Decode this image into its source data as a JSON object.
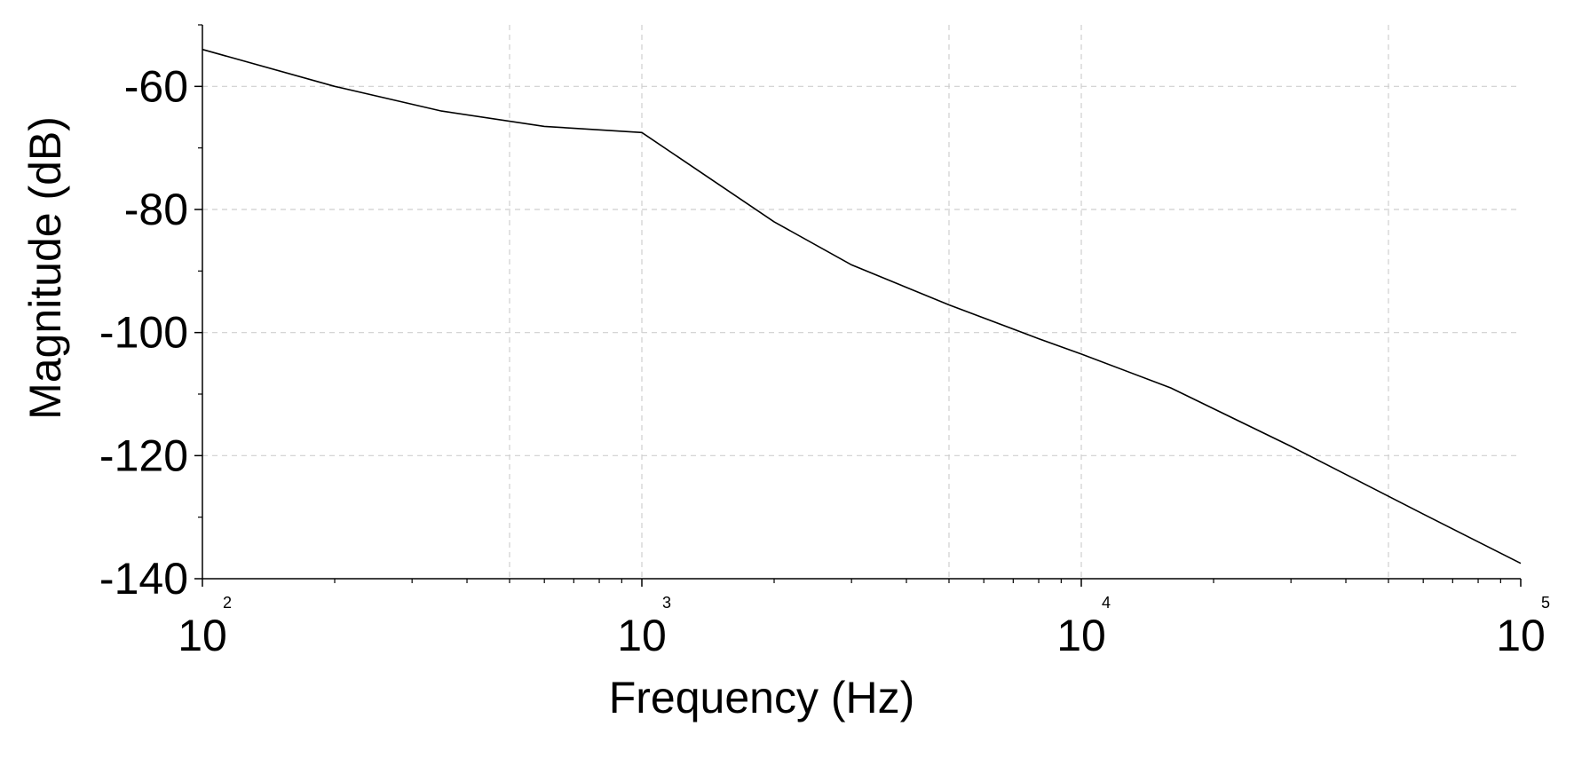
{
  "chart_data": {
    "type": "line",
    "title": "",
    "xlabel": "Frequency (Hz)",
    "ylabel": "Magnitude (dB)",
    "x_scale": "log",
    "xlim": [
      100,
      100000
    ],
    "ylim": [
      -140,
      -50
    ],
    "grid": true,
    "legend": "none",
    "x_ticks": [
      {
        "base": "10",
        "exp": "2",
        "value": 100
      },
      {
        "base": "10",
        "exp": "3",
        "value": 1000
      },
      {
        "base": "10",
        "exp": "4",
        "value": 10000
      },
      {
        "base": "10",
        "exp": "5",
        "value": 100000
      }
    ],
    "x_minor_grid": [
      500,
      5000,
      50000
    ],
    "y_ticks": [
      {
        "label": "-60",
        "value": -60
      },
      {
        "label": "-80",
        "value": -80
      },
      {
        "label": "-100",
        "value": -100
      },
      {
        "label": "-120",
        "value": -120
      },
      {
        "label": "-140",
        "value": -140
      }
    ],
    "y_minor_ticks": [
      -50,
      -70,
      -90,
      -110,
      -130
    ],
    "series": [
      {
        "color": "#000000",
        "x": [
          100,
          200,
          350,
          600,
          1000,
          2000,
          3000,
          5000,
          8000,
          10000,
          16000,
          30000,
          60000,
          100000
        ],
        "y": [
          -54,
          -60,
          -64,
          -66.5,
          -67.5,
          -82,
          -89,
          -95.5,
          -101,
          -103.5,
          -109,
          -118.5,
          -129.5,
          -137.5
        ]
      }
    ]
  }
}
